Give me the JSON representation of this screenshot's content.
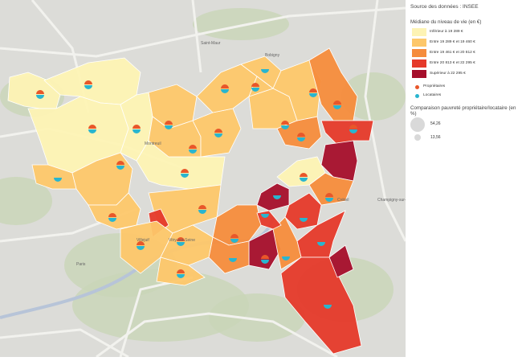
{
  "source": "Source des données : INSEE",
  "legend": {
    "title": "Médiane du niveau de vie (en €)",
    "classes": [
      {
        "label": "Inférieur à 19 289 €",
        "color": "#fdf3b4"
      },
      {
        "label": "Entre 19 289 € et 19 460 €",
        "color": "#fdc76a"
      },
      {
        "label": "Entre 19 461 € et 20 812 €",
        "color": "#f58c3c"
      },
      {
        "label": "Entre 20 813 € et 22 295 €",
        "color": "#e5392a"
      },
      {
        "label": "Supérieur à 22 295 €",
        "color": "#a50e2b"
      }
    ],
    "markers": [
      {
        "label": "Propriétaires",
        "color": "#e8572a",
        "icon": "owner-dot-icon"
      },
      {
        "label": "Locataires",
        "color": "#29b5cf",
        "icon": "renter-dot-icon"
      }
    ],
    "size_title": "Comparaison pauvreté propriétaire/locataire (en %)",
    "sizes": [
      "54,26",
      "13,56"
    ]
  },
  "basemap_labels": [
    "Paris",
    "Villejuif",
    "Créteil",
    "Vitry-sur-Seine",
    "Champigny-sur-Marne",
    "Bobigny",
    "Montreuil",
    "Saint-Maur"
  ],
  "communes": [
    {
      "fill": "#fdf3b4",
      "owner": true,
      "renter": true
    },
    {
      "fill": "#fdf3b4",
      "owner": true,
      "renter": true
    },
    {
      "fill": "#fdf3b4",
      "owner": true,
      "renter": true
    },
    {
      "fill": "#fdf3b4",
      "owner": true,
      "renter": true
    },
    {
      "fill": "#fdc76a",
      "owner": false,
      "renter": true
    },
    {
      "fill": "#fdc76a",
      "owner": true,
      "renter": true
    },
    {
      "fill": "#fdc76a",
      "owner": true,
      "renter": true
    },
    {
      "fill": "#fdc76a",
      "owner": true,
      "renter": true
    },
    {
      "fill": "#fdf3b4",
      "owner": true,
      "renter": true
    },
    {
      "fill": "#fdc76a",
      "owner": true,
      "renter": true
    },
    {
      "fill": "#fdc76a",
      "owner": true,
      "renter": true
    },
    {
      "fill": "#fdc76a",
      "owner": true,
      "renter": true
    },
    {
      "fill": "#fdc76a",
      "owner": false,
      "renter": true
    },
    {
      "fill": "#fdc76a",
      "owner": true,
      "renter": true
    },
    {
      "fill": "#f58c3c",
      "owner": true,
      "renter": true
    },
    {
      "fill": "#fdc76a",
      "owner": true,
      "renter": true
    },
    {
      "fill": "#fdc76a",
      "owner": true,
      "renter": true
    },
    {
      "fill": "#f58c3c",
      "owner": true,
      "renter": true
    },
    {
      "fill": "#e5392a",
      "owner": true,
      "renter": true
    },
    {
      "fill": "#a50e2b",
      "owner": false,
      "renter": false
    },
    {
      "fill": "#fdf3b4",
      "owner": true,
      "renter": true
    },
    {
      "fill": "#f58c3c",
      "owner": true,
      "renter": true
    },
    {
      "fill": "#a50e2b",
      "owner": false,
      "renter": true
    },
    {
      "fill": "#e5392a",
      "owner": false,
      "renter": true
    },
    {
      "fill": "#e5392a",
      "owner": false,
      "renter": true
    },
    {
      "fill": "#f58c3c",
      "owner": true,
      "renter": true
    },
    {
      "fill": "#a50e2b",
      "owner": true,
      "renter": true
    },
    {
      "fill": "#f58c3c",
      "owner": false,
      "renter": true
    },
    {
      "fill": "#e5392a",
      "owner": false,
      "renter": true
    },
    {
      "fill": "#a50e2b",
      "owner": false,
      "renter": false
    },
    {
      "fill": "#e5392a",
      "owner": false,
      "renter": true
    },
    {
      "fill": "#fdc76a",
      "owner": true,
      "renter": true
    },
    {
      "fill": "#e5392a",
      "owner": false,
      "renter": false
    },
    {
      "fill": "#f58c3c",
      "owner": false,
      "renter": true
    },
    {
      "fill": "#fdc76a",
      "owner": true,
      "renter": true
    },
    {
      "fill": "#fdc76a",
      "owner": true,
      "renter": true
    },
    {
      "fill": "#fdc76a",
      "owner": true,
      "renter": true
    }
  ]
}
